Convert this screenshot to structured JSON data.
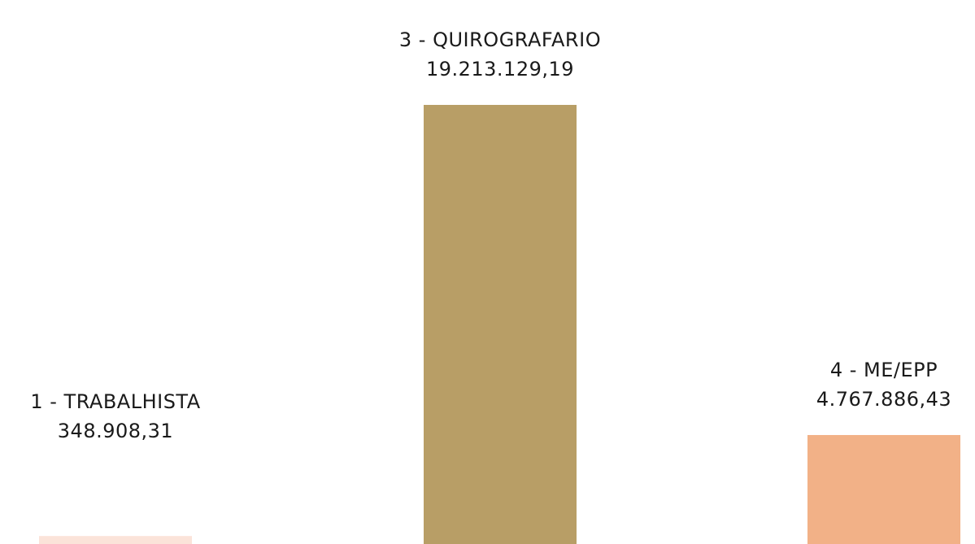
{
  "chart_data": {
    "type": "bar",
    "categories": [
      "1 - TRABALHISTA",
      "3 - QUIROGRAFARIO",
      "4 - ME/EPP"
    ],
    "values": [
      348908.31,
      19213129.19,
      4767886.43
    ],
    "value_labels": [
      "348.908,31",
      "19.213.129,19",
      "4.767.886,43"
    ],
    "colors": [
      "#fbe3d9",
      "#b89e66",
      "#f2b187"
    ],
    "title": "",
    "xlabel": "",
    "ylabel": "",
    "grid": false,
    "legend": "none"
  }
}
